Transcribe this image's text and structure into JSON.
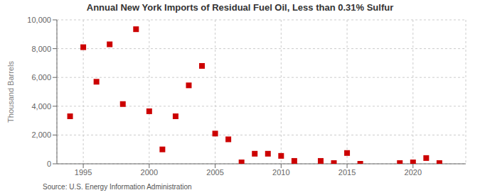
{
  "chart_data": {
    "type": "scatter",
    "title": "Annual New York Imports of Residual Fuel Oil, Less than 0.31% Sulfur",
    "ylabel": "Thousand Barrels",
    "annotations": [
      "Source: U.S. Energy Information Administration"
    ],
    "x": [
      1994,
      1995,
      1996,
      1997,
      1998,
      1999,
      2000,
      2001,
      2002,
      2003,
      2004,
      2005,
      2006,
      2007,
      2008,
      2009,
      2010,
      2011,
      2013,
      2014,
      2015,
      2016,
      2019,
      2020,
      2021,
      2022
    ],
    "values": [
      3300,
      8100,
      5700,
      8300,
      4150,
      9350,
      3650,
      1000,
      3300,
      5450,
      6800,
      2100,
      1700,
      100,
      700,
      700,
      550,
      200,
      200,
      50,
      750,
      0,
      50,
      100,
      400,
      50
    ],
    "color": "#cc0000",
    "marker": "square",
    "xlim": [
      1993,
      2024
    ],
    "ylim": [
      0,
      10000
    ],
    "xticks": [
      1995,
      2000,
      2005,
      2010,
      2015,
      2020
    ],
    "yticks": [
      0,
      {
        "value": 2000,
        "label": "2,000"
      },
      {
        "value": 4000,
        "label": "4,000"
      },
      {
        "value": 6000,
        "label": "6,000"
      },
      {
        "value": 8000,
        "label": "8,000"
      },
      {
        "value": 10000,
        "label": "10,000"
      }
    ],
    "grid": true
  }
}
